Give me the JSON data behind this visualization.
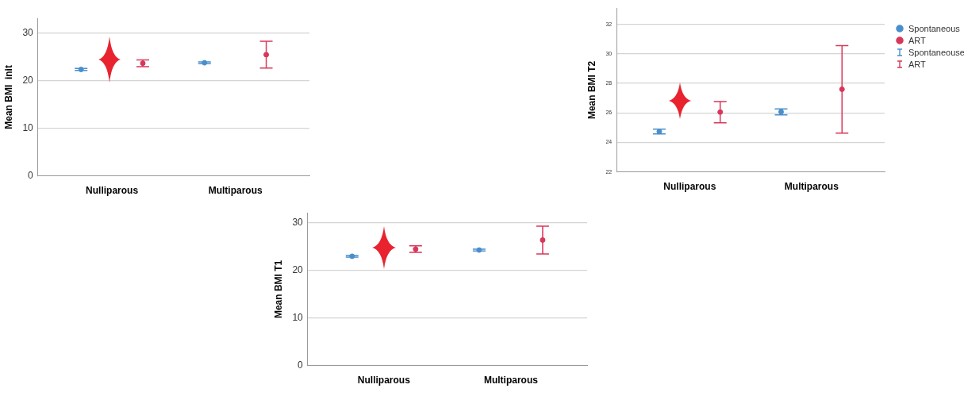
{
  "chart_data": [
    {
      "type": "scatter",
      "ylabel": "Mean BMI  init",
      "categories": [
        "Nulliparous",
        "Multiparous"
      ],
      "ylim": [
        0,
        33
      ],
      "yticks": [
        0,
        10,
        20,
        30
      ],
      "grid": "y",
      "legend": false,
      "marker": "circle",
      "series": [
        {
          "color": "#4a8fcc",
          "values": [
            22.3,
            23.7
          ],
          "errors": [
            0.2,
            0.2
          ]
        },
        {
          "color": "#d8375a",
          "values": [
            23.6,
            25.4
          ],
          "errors": [
            [
              22.9,
              24.3
            ],
            [
              22.6,
              28.2
            ]
          ]
        }
      ]
    },
    {
      "type": "scatter",
      "ylabel": "Mean BMI T2",
      "categories": [
        "Nulliparous",
        "Multiparous"
      ],
      "ylim": [
        22,
        33.1
      ],
      "yticks": [
        22,
        24,
        26,
        28,
        30,
        32
      ],
      "grid": "y",
      "legend": "right",
      "marker": "circle",
      "annotations": [
        "Spontaneouse",
        "ART"
      ],
      "series": [
        {
          "name": "Spontaneous",
          "color": "#4a8fcc",
          "values": [
            24.73,
            26.07
          ],
          "errors": [
            [
              24.57,
              24.9
            ],
            [
              25.87,
              26.27
            ]
          ]
        },
        {
          "name": "ART",
          "color": "#d8375a",
          "values": [
            26.05,
            27.6
          ],
          "errors": [
            [
              25.33,
              26.77
            ],
            [
              24.63,
              30.55
            ]
          ]
        }
      ]
    },
    {
      "type": "scatter",
      "ylabel": "Mean BMI T1",
      "categories": [
        "Nulliparous",
        "Multiparous"
      ],
      "ylim": [
        0,
        32
      ],
      "yticks": [
        0,
        10,
        20,
        30
      ],
      "grid": "y",
      "legend": false,
      "marker": "circle",
      "series": [
        {
          "color": "#4a8fcc",
          "values": [
            22.9,
            24.2
          ],
          "errors": [
            [
              22.7,
              23.1
            ],
            [
              24.0,
              24.4
            ]
          ]
        },
        {
          "color": "#d8375a",
          "values": [
            24.4,
            26.3
          ],
          "errors": [
            [
              23.7,
              25.1
            ],
            [
              23.4,
              29.2
            ]
          ]
        }
      ]
    }
  ]
}
